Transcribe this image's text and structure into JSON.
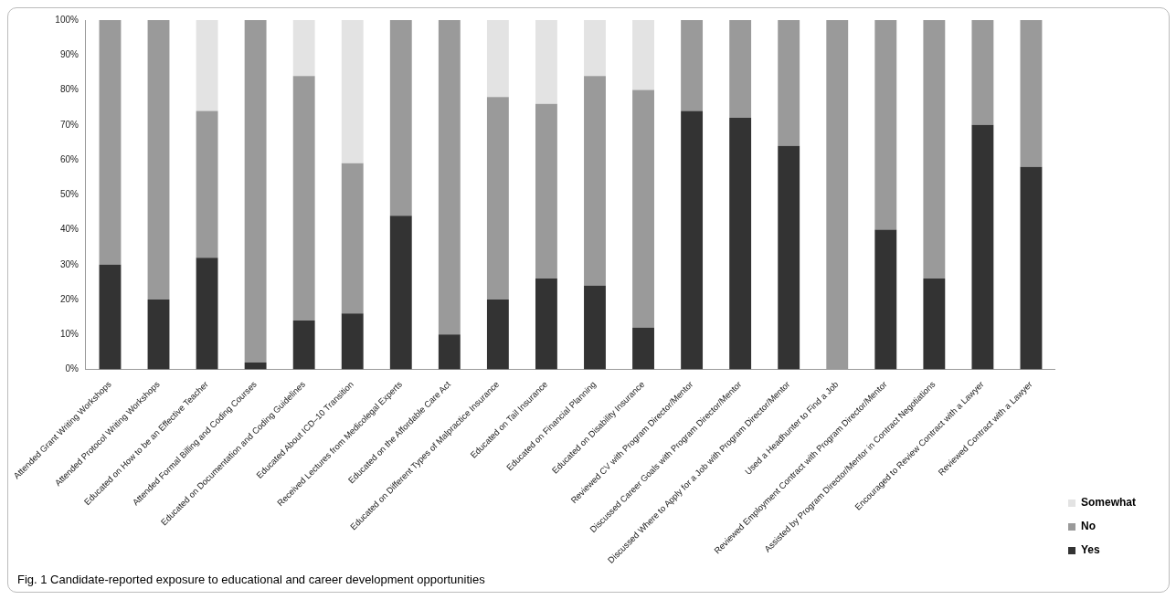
{
  "chart_data": {
    "type": "bar",
    "stacked": true,
    "categories": [
      "Attended Grant Writing Workshops",
      "Attended Protocol Writing Workshops",
      "Educated on How to be an Effective Teacher",
      "Attended Formal Billing and Coding Courses",
      "Educated on Documentation and Coding Guidelines",
      "Educated About ICD–10 Transition",
      "Received Lectures from Medicolegal Experts",
      "Educated on the Affordable Care Act",
      "Educated on Different Types of Malpractice Insurance",
      "Educated on Tail Insurance",
      "Educated on Financial Planning",
      "Educated on Disability Insurance",
      "Reviewed CV with Program Director/Mentor",
      "Discussed Career Goals with Program Director/Mentor",
      "Discussed Where to Apply for a Job with Program Director/Mentor",
      "Used a Headhunter to Find a Job",
      "Reviewed Employment Contract with Program Director/Mentor",
      "Assisted by Program Director/Mentor in Contract Negotiations",
      "Encouraged to Review Contract with a Lawyer",
      "Reviewed Contract with a Lawyer"
    ],
    "series": [
      {
        "name": "Yes",
        "color": "#333333",
        "values": [
          30,
          20,
          32,
          2,
          14,
          16,
          44,
          10,
          20,
          26,
          24,
          12,
          74,
          72,
          64,
          0,
          40,
          26,
          70,
          58
        ]
      },
      {
        "name": "No",
        "color": "#9a9a9a",
        "values": [
          70,
          80,
          42,
          98,
          70,
          43,
          56,
          90,
          58,
          50,
          60,
          68,
          26,
          28,
          36,
          100,
          60,
          74,
          30,
          42
        ]
      },
      {
        "name": "Somewhat",
        "color": "#e3e3e3",
        "values": [
          0,
          0,
          26,
          0,
          16,
          41,
          0,
          0,
          22,
          24,
          16,
          20,
          0,
          0,
          0,
          0,
          0,
          0,
          0,
          0
        ]
      }
    ],
    "ylim": [
      0,
      100
    ],
    "yticks": [
      {
        "value": 0,
        "label": "0%"
      },
      {
        "value": 10,
        "label": "10%"
      },
      {
        "value": 20,
        "label": "20%"
      },
      {
        "value": 30,
        "label": "30%"
      },
      {
        "value": 40,
        "label": "40%"
      },
      {
        "value": 50,
        "label": "50%"
      },
      {
        "value": 60,
        "label": "60%"
      },
      {
        "value": 70,
        "label": "70%"
      },
      {
        "value": 80,
        "label": "80%"
      },
      {
        "value": 90,
        "label": "90%"
      },
      {
        "value": 100,
        "label": "100%"
      }
    ],
    "legend": "bottom right",
    "annotations": [
      "Fig. 1 Candidate-reported exposure to educational and career development opportunities"
    ]
  }
}
